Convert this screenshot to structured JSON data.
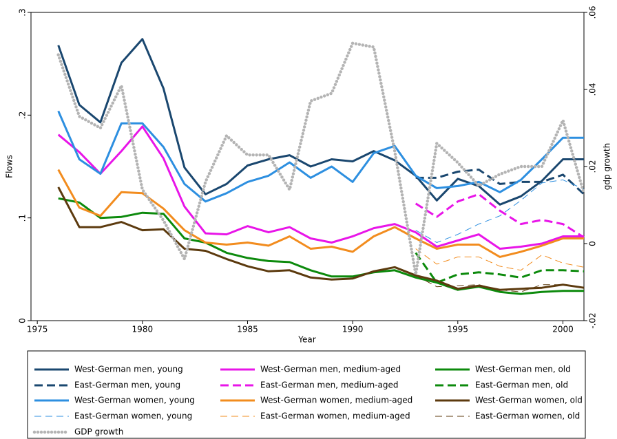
{
  "chart_data": {
    "type": "line",
    "x": [
      1976,
      1977,
      1978,
      1979,
      1980,
      1981,
      1982,
      1983,
      1984,
      1985,
      1986,
      1987,
      1988,
      1989,
      1990,
      1991,
      1992,
      1993,
      1994,
      1995,
      1996,
      1997,
      1998,
      1999,
      2000,
      2001
    ],
    "xlabel": "Year",
    "ylabel": "Flows",
    "y2label": "gdp growth",
    "xlim": [
      1974.7,
      2001
    ],
    "xticks": [
      1975,
      1980,
      1985,
      1990,
      1995,
      2000
    ],
    "ylim": [
      0,
      0.3
    ],
    "yticks": [
      0,
      {
        "value": 0.1,
        "label": ".1"
      },
      {
        "value": 0.2,
        "label": ".2"
      },
      {
        "value": 0.3,
        "label": ".3"
      }
    ],
    "y2lim": [
      -0.02,
      0.06
    ],
    "y2ticks": [
      {
        "value": -0.02,
        "label": "-.02"
      },
      0,
      {
        "value": 0.02,
        "label": ".02"
      },
      {
        "value": 0.04,
        "label": ".04"
      },
      {
        "value": 0.06,
        "label": ".06"
      }
    ],
    "grid": false,
    "series": [
      {
        "name": "West-German men, young",
        "color": "#1a476f",
        "line_style": "solid",
        "values": [
          0.268,
          0.21,
          0.193,
          0.251,
          0.274,
          0.226,
          0.149,
          0.123,
          0.133,
          0.151,
          0.157,
          0.161,
          0.15,
          0.157,
          0.155,
          0.165,
          0.156,
          0.141,
          0.117,
          0.138,
          0.131,
          0.113,
          0.121,
          0.136,
          0.157,
          0.157
        ]
      },
      {
        "name": "West-German men, medium-aged",
        "color": "#e815e8",
        "line_style": "solid",
        "values": [
          0.181,
          0.164,
          0.143,
          0.165,
          0.189,
          0.158,
          0.111,
          0.085,
          0.084,
          0.092,
          0.086,
          0.091,
          0.08,
          0.076,
          0.082,
          0.09,
          0.094,
          0.086,
          0.072,
          0.078,
          0.084,
          0.07,
          0.072,
          0.075,
          0.082,
          0.082
        ]
      },
      {
        "name": "West-German men, old",
        "color": "#0c8a0c",
        "line_style": "solid",
        "values": [
          0.119,
          0.115,
          0.1,
          0.101,
          0.105,
          0.104,
          0.08,
          0.076,
          0.066,
          0.061,
          0.058,
          0.057,
          0.049,
          0.043,
          0.043,
          0.047,
          0.049,
          0.042,
          0.037,
          0.03,
          0.033,
          0.028,
          0.026,
          0.028,
          0.029,
          0.029
        ]
      },
      {
        "name": "East-German men, young",
        "color": "#1a476f",
        "line_style": "dash",
        "values": [
          null,
          null,
          null,
          null,
          null,
          null,
          null,
          null,
          null,
          null,
          null,
          null,
          null,
          null,
          null,
          null,
          null,
          0.139,
          0.139,
          0.145,
          0.147,
          0.133,
          0.135,
          0.135,
          0.142,
          0.123
        ]
      },
      {
        "name": "East-German men, medium-aged",
        "color": "#e815e8",
        "line_style": "dash",
        "values": [
          null,
          null,
          null,
          null,
          null,
          null,
          null,
          null,
          null,
          null,
          null,
          null,
          null,
          null,
          null,
          null,
          null,
          0.114,
          0.101,
          0.116,
          0.123,
          0.107,
          0.094,
          0.098,
          0.094,
          0.081
        ]
      },
      {
        "name": "East-German men, old",
        "color": "#0c8a0c",
        "line_style": "dash",
        "values": [
          null,
          null,
          null,
          null,
          null,
          null,
          null,
          null,
          null,
          null,
          null,
          null,
          null,
          null,
          null,
          null,
          null,
          0.066,
          0.037,
          0.045,
          0.047,
          0.045,
          0.042,
          0.049,
          0.049,
          0.048
        ]
      },
      {
        "name": "West-German women, young",
        "color": "#2d8fe0",
        "line_style": "solid",
        "values": [
          0.204,
          0.157,
          0.143,
          0.192,
          0.192,
          0.169,
          0.133,
          0.116,
          0.124,
          0.135,
          0.141,
          0.154,
          0.139,
          0.15,
          0.135,
          0.163,
          0.17,
          0.141,
          0.129,
          0.131,
          0.135,
          0.125,
          0.137,
          0.157,
          0.178,
          0.178
        ]
      },
      {
        "name": "West-German women, medium-aged",
        "color": "#f28c1e",
        "line_style": "solid",
        "values": [
          0.147,
          0.11,
          0.102,
          0.125,
          0.124,
          0.109,
          0.088,
          0.076,
          0.074,
          0.076,
          0.073,
          0.082,
          0.07,
          0.072,
          0.067,
          0.082,
          0.091,
          0.08,
          0.07,
          0.074,
          0.074,
          0.062,
          0.067,
          0.073,
          0.08,
          0.08
        ]
      },
      {
        "name": "West-German women, old",
        "color": "#5c3a0e",
        "line_style": "solid",
        "values": [
          0.13,
          0.091,
          0.091,
          0.096,
          0.088,
          0.089,
          0.07,
          0.068,
          0.06,
          0.053,
          0.048,
          0.049,
          0.042,
          0.04,
          0.041,
          0.048,
          0.052,
          0.044,
          0.039,
          0.031,
          0.034,
          0.03,
          0.031,
          0.032,
          0.035,
          0.032
        ]
      },
      {
        "name": "East-German women, young",
        "color": "#2d8fe0",
        "line_style": "thin-dash",
        "values": [
          null,
          null,
          null,
          null,
          null,
          null,
          null,
          null,
          null,
          null,
          null,
          null,
          null,
          null,
          null,
          null,
          null,
          0.088,
          0.076,
          0.084,
          0.094,
          0.102,
          0.117,
          0.134,
          0.137,
          0.128
        ]
      },
      {
        "name": "East-German women, medium-aged",
        "color": "#f28c1e",
        "line_style": "thin-dash",
        "values": [
          null,
          null,
          null,
          null,
          null,
          null,
          null,
          null,
          null,
          null,
          null,
          null,
          null,
          null,
          null,
          null,
          null,
          0.07,
          0.055,
          0.062,
          0.062,
          0.053,
          0.049,
          0.064,
          0.056,
          0.052
        ]
      },
      {
        "name": "East-German women, old",
        "color": "#5c3a0e",
        "line_style": "thin-dash",
        "values": [
          null,
          null,
          null,
          null,
          null,
          null,
          null,
          null,
          null,
          null,
          null,
          null,
          null,
          null,
          null,
          null,
          null,
          0.044,
          0.033,
          0.034,
          0.035,
          0.03,
          0.028,
          0.035,
          0.035,
          0.032
        ]
      },
      {
        "name": "GDP growth",
        "color": "#b4b4b4",
        "line_style": "dot",
        "axis": "y2",
        "values": [
          0.049,
          0.033,
          0.03,
          0.041,
          0.014,
          0.006,
          -0.004,
          0.016,
          0.028,
          0.023,
          0.023,
          0.014,
          0.037,
          0.039,
          0.052,
          0.051,
          0.024,
          -0.008,
          0.026,
          0.021,
          0.015,
          0.018,
          0.02,
          0.02,
          0.032,
          0.013
        ]
      }
    ]
  }
}
